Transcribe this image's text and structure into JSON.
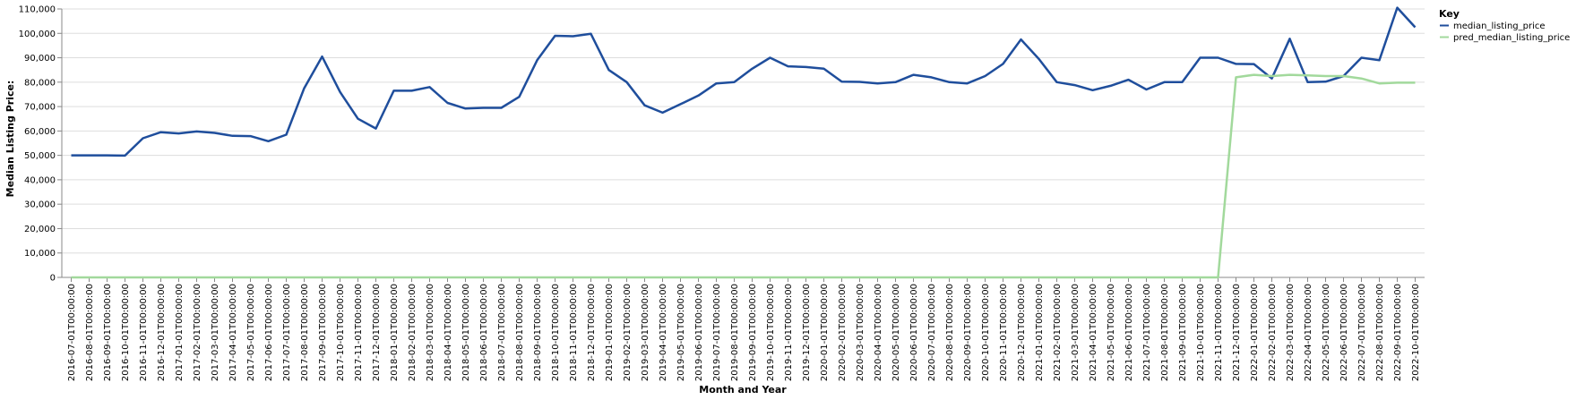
{
  "chart_data": {
    "type": "line",
    "xlabel": "Month and Year",
    "ylabel": "Median Listing Price:",
    "ylim": [
      0,
      110000
    ],
    "y_ticks": [
      "0",
      "10,000",
      "20,000",
      "30,000",
      "40,000",
      "50,000",
      "60,000",
      "70,000",
      "80,000",
      "90,000",
      "100,000",
      "110,000"
    ],
    "grid": true,
    "legend": {
      "title": "Key",
      "position": "top-right"
    },
    "x": [
      "2016-07-01T00:00:00",
      "2016-08-01T00:00:00",
      "2016-09-01T00:00:00",
      "2016-10-01T00:00:00",
      "2016-11-01T00:00:00",
      "2016-12-01T00:00:00",
      "2017-01-01T00:00:00",
      "2017-02-01T00:00:00",
      "2017-03-01T00:00:00",
      "2017-04-01T00:00:00",
      "2017-05-01T00:00:00",
      "2017-06-01T00:00:00",
      "2017-07-01T00:00:00",
      "2017-08-01T00:00:00",
      "2017-09-01T00:00:00",
      "2017-10-01T00:00:00",
      "2017-11-01T00:00:00",
      "2017-12-01T00:00:00",
      "2018-01-01T00:00:00",
      "2018-02-01T00:00:00",
      "2018-03-01T00:00:00",
      "2018-04-01T00:00:00",
      "2018-05-01T00:00:00",
      "2018-06-01T00:00:00",
      "2018-07-01T00:00:00",
      "2018-08-01T00:00:00",
      "2018-09-01T00:00:00",
      "2018-10-01T00:00:00",
      "2018-11-01T00:00:00",
      "2018-12-01T00:00:00",
      "2019-01-01T00:00:00",
      "2019-02-01T00:00:00",
      "2019-03-01T00:00:00",
      "2019-04-01T00:00:00",
      "2019-05-01T00:00:00",
      "2019-06-01T00:00:00",
      "2019-07-01T00:00:00",
      "2019-08-01T00:00:00",
      "2019-09-01T00:00:00",
      "2019-10-01T00:00:00",
      "2019-11-01T00:00:00",
      "2019-12-01T00:00:00",
      "2020-01-01T00:00:00",
      "2020-02-01T00:00:00",
      "2020-03-01T00:00:00",
      "2020-04-01T00:00:00",
      "2020-05-01T00:00:00",
      "2020-06-01T00:00:00",
      "2020-07-01T00:00:00",
      "2020-08-01T00:00:00",
      "2020-09-01T00:00:00",
      "2020-10-01T00:00:00",
      "2020-11-01T00:00:00",
      "2020-12-01T00:00:00",
      "2021-01-01T00:00:00",
      "2021-02-01T00:00:00",
      "2021-03-01T00:00:00",
      "2021-04-01T00:00:00",
      "2021-05-01T00:00:00",
      "2021-06-01T00:00:00",
      "2021-07-01T00:00:00",
      "2021-08-01T00:00:00",
      "2021-09-01T00:00:00",
      "2021-10-01T00:00:00",
      "2021-11-01T00:00:00",
      "2021-12-01T00:00:00",
      "2022-01-01T00:00:00",
      "2022-02-01T00:00:00",
      "2022-03-01T00:00:00",
      "2022-04-01T00:00:00",
      "2022-05-01T00:00:00",
      "2022-06-01T00:00:00",
      "2022-07-01T00:00:00",
      "2022-08-01T00:00:00",
      "2022-09-01T00:00:00",
      "2022-10-01T00:00:00"
    ],
    "series": [
      {
        "name": "median_listing_price",
        "color": "#1f4e9c",
        "values": [
          50000,
          50000,
          50000,
          49900,
          57000,
          59500,
          59000,
          59800,
          59200,
          58000,
          57900,
          55800,
          58500,
          77500,
          90500,
          76000,
          65000,
          61000,
          76500,
          76500,
          78000,
          71500,
          69200,
          69500,
          69500,
          74000,
          89000,
          99000,
          98800,
          99800,
          85000,
          80000,
          70500,
          67500,
          71000,
          74500,
          79500,
          80000,
          85500,
          90000,
          86500,
          86200,
          85500,
          80200,
          80100,
          79500,
          80000,
          83000,
          82000,
          80000,
          79500,
          82500,
          87500,
          97500,
          89500,
          80000,
          78800,
          76700,
          78500,
          81000,
          77000,
          80000,
          80000,
          90000,
          90000,
          87500,
          87400,
          81500,
          97800,
          80000,
          80200,
          82500,
          90000,
          89000,
          110500,
          102500
        ]
      },
      {
        "name": "pred_median_listing_price",
        "color": "#a2d99c",
        "values": [
          0,
          0,
          0,
          0,
          0,
          0,
          0,
          0,
          0,
          0,
          0,
          0,
          0,
          0,
          0,
          0,
          0,
          0,
          0,
          0,
          0,
          0,
          0,
          0,
          0,
          0,
          0,
          0,
          0,
          0,
          0,
          0,
          0,
          0,
          0,
          0,
          0,
          0,
          0,
          0,
          0,
          0,
          0,
          0,
          0,
          0,
          0,
          0,
          0,
          0,
          0,
          0,
          0,
          0,
          0,
          0,
          0,
          0,
          0,
          0,
          0,
          0,
          0,
          0,
          0,
          82000,
          83000,
          82500,
          83000,
          82800,
          82500,
          82500,
          81500,
          79500,
          79800,
          79800
        ]
      }
    ]
  }
}
